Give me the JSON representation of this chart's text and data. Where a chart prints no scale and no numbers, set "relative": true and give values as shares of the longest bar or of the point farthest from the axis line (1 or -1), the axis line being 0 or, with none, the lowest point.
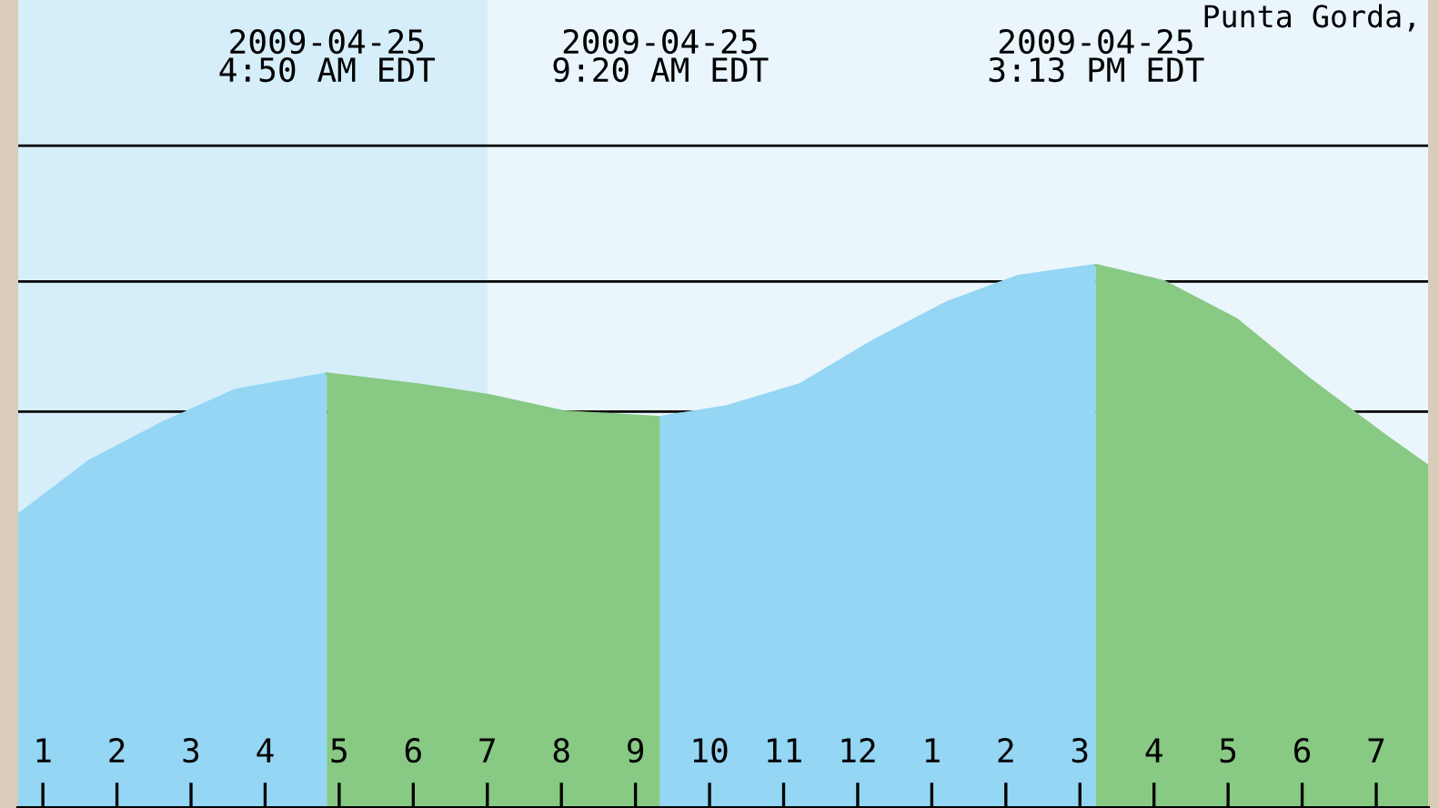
{
  "chart_data": {
    "type": "area",
    "relative": true,
    "xlim": [
      "2009-04-25T00:40",
      "2009-04-25T19:42"
    ],
    "xticks": [
      {
        "value": "2009-04-25T01:00",
        "label": "1"
      },
      {
        "value": "2009-04-25T02:00",
        "label": "2"
      },
      {
        "value": "2009-04-25T03:00",
        "label": "3"
      },
      {
        "value": "2009-04-25T04:00",
        "label": "4"
      },
      {
        "value": "2009-04-25T05:00",
        "label": "5"
      },
      {
        "value": "2009-04-25T06:00",
        "label": "6"
      },
      {
        "value": "2009-04-25T07:00",
        "label": "7"
      },
      {
        "value": "2009-04-25T08:00",
        "label": "8"
      },
      {
        "value": "2009-04-25T09:00",
        "label": "9"
      },
      {
        "value": "2009-04-25T10:00",
        "label": "10"
      },
      {
        "value": "2009-04-25T11:00",
        "label": "11"
      },
      {
        "value": "2009-04-25T12:00",
        "label": "12"
      },
      {
        "value": "2009-04-25T13:00",
        "label": "1"
      },
      {
        "value": "2009-04-25T14:00",
        "label": "2"
      },
      {
        "value": "2009-04-25T15:00",
        "label": "3"
      },
      {
        "value": "2009-04-25T16:00",
        "label": "4"
      },
      {
        "value": "2009-04-25T17:00",
        "label": "5"
      },
      {
        "value": "2009-04-25T18:00",
        "label": "6"
      },
      {
        "value": "2009-04-25T19:00",
        "label": "7"
      }
    ],
    "series": [
      {
        "color": "#94d6f4",
        "x": [
          "2009-04-25T00:40",
          "2009-04-25T01:38",
          "2009-04-25T02:37",
          "2009-04-25T03:36",
          "2009-04-25T04:50"
        ],
        "values": [
          0.54,
          0.64,
          0.71,
          0.77,
          0.8
        ]
      },
      {
        "color": "#88c984",
        "x": [
          "2009-04-25T04:50",
          "2009-04-25T06:04",
          "2009-04-25T07:02",
          "2009-04-25T08:02",
          "2009-04-25T09:20"
        ],
        "values": [
          0.8,
          0.78,
          0.76,
          0.73,
          0.72
        ]
      },
      {
        "color": "#94d6f4",
        "x": [
          "2009-04-25T09:20",
          "2009-04-25T10:14",
          "2009-04-25T11:13",
          "2009-04-25T12:12",
          "2009-04-25T13:11",
          "2009-04-25T14:10",
          "2009-04-25T15:13"
        ],
        "values": [
          0.72,
          0.74,
          0.78,
          0.86,
          0.93,
          0.98,
          1.0
        ]
      },
      {
        "color": "#88c984",
        "x": [
          "2009-04-25T15:13",
          "2009-04-25T16:08",
          "2009-04-25T17:07",
          "2009-04-25T18:06",
          "2009-04-25T19:05",
          "2009-04-25T19:42"
        ],
        "values": [
          1.0,
          0.97,
          0.9,
          0.79,
          0.69,
          0.63
        ]
      }
    ],
    "bands": [
      {
        "axis": "x",
        "from": "2009-04-25T00:40",
        "to": "2009-04-25T07:00",
        "color": "#d6eefa"
      }
    ],
    "ref_lines": [
      {
        "axis": "y",
        "value": 1.22,
        "color": "#000000"
      },
      {
        "axis": "y",
        "value": 0.97,
        "color": "#000000"
      },
      {
        "axis": "y",
        "value": 0.73,
        "color": "#000000"
      }
    ],
    "annotations": [
      "2009-04-25\n4:50 AM EDT",
      "2009-04-25\n9:20 AM EDT",
      "2009-04-25\n3:13 PM EDT",
      "Punta Gorda,"
    ]
  }
}
